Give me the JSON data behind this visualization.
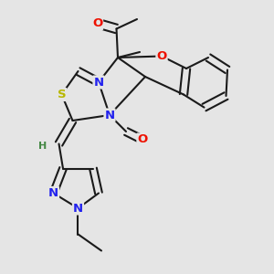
{
  "background_color": "#e5e5e5",
  "bond_color": "#1a1a1a",
  "atoms": {
    "S": {
      "color": "#b8b800"
    },
    "O": {
      "color": "#ee1100"
    },
    "N": {
      "color": "#2222ee"
    },
    "H": {
      "color": "#448844"
    }
  },
  "bond_width": 1.5,
  "dbo": 0.013,
  "font_size": 9.5,
  "font_size_h": 8.0
}
